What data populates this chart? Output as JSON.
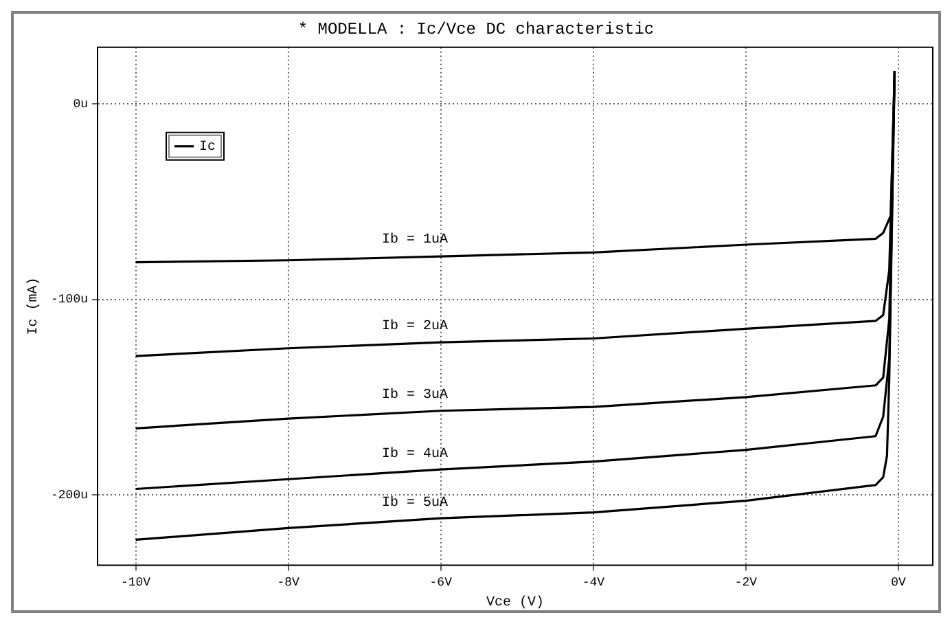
{
  "chart_data": {
    "type": "line",
    "title": "* MODELLA : Ic/Vce DC characteristic",
    "xlabel": "Vce (V)",
    "ylabel": "Ic (mA)",
    "xlim": [
      -10.5,
      0.45
    ],
    "ylim": [
      -236,
      29
    ],
    "xticks": [
      {
        "value": -10,
        "label": "-10V"
      },
      {
        "value": -8,
        "label": "-8V"
      },
      {
        "value": -6,
        "label": "-6V"
      },
      {
        "value": -4,
        "label": "-4V"
      },
      {
        "value": -2,
        "label": "-2V"
      },
      {
        "value": 0,
        "label": "0V"
      }
    ],
    "yticks": [
      {
        "value": -200,
        "label": "-200u"
      },
      {
        "value": -100,
        "label": "-100u"
      },
      {
        "value": 0,
        "label": "0u"
      }
    ],
    "grid": true,
    "legend": "top left",
    "marker": "none",
    "line_style": "solid",
    "series": [
      {
        "name": "Ic",
        "color": "#000000",
        "x": [
          -10,
          -8,
          -6,
          -4,
          -2,
          -0.3,
          -0.2,
          -0.1,
          -0.05
        ],
        "values": [
          -81,
          -80,
          -78,
          -76,
          -72,
          -69,
          -66,
          -57,
          17
        ]
      },
      {
        "color": "#000000",
        "x": [
          -10,
          -8,
          -6,
          -4,
          -2,
          -0.3,
          -0.2,
          -0.12,
          -0.05
        ],
        "values": [
          -129,
          -125,
          -122,
          -120,
          -115,
          -111,
          -108,
          -85,
          17
        ]
      },
      {
        "color": "#000000",
        "x": [
          -10,
          -8,
          -6,
          -4,
          -2,
          -0.3,
          -0.2,
          -0.12,
          -0.05
        ],
        "values": [
          -166,
          -161,
          -157,
          -155,
          -150,
          -144,
          -140,
          -110,
          17
        ]
      },
      {
        "color": "#000000",
        "x": [
          -10,
          -8,
          -6,
          -4,
          -2,
          -0.3,
          -0.2,
          -0.12,
          -0.05
        ],
        "values": [
          -197,
          -192,
          -187,
          -183,
          -177,
          -170,
          -160,
          -130,
          17
        ]
      },
      {
        "color": "#000000",
        "x": [
          -10,
          -8,
          -6,
          -4,
          -2,
          -0.3,
          -0.2,
          -0.15,
          -0.12,
          -0.05
        ],
        "values": [
          -223,
          -217,
          -212,
          -209,
          -203,
          -195,
          -191,
          -180,
          -140,
          17
        ]
      }
    ],
    "annotations": [
      "Ib = 1uA",
      "Ib = 2uA",
      "Ib = 3uA",
      "Ib = 4uA",
      "Ib = 5uA"
    ]
  }
}
